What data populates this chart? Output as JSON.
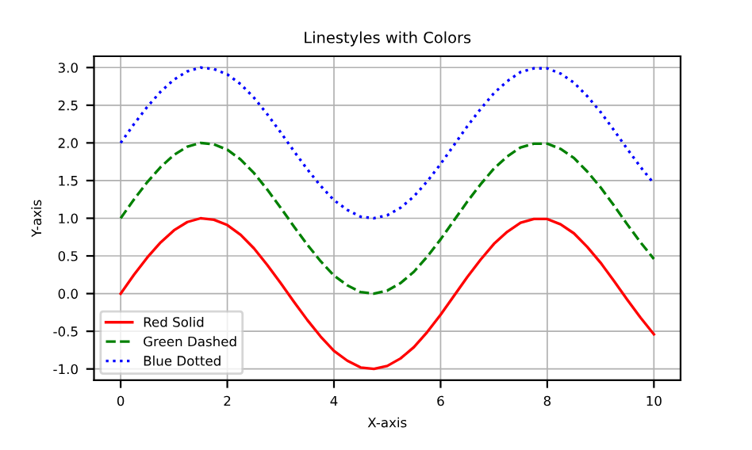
{
  "chart_data": {
    "type": "line",
    "title": "Linestyles with Colors",
    "xlabel": "X-axis",
    "ylabel": "Y-axis",
    "x": [
      0,
      0.25,
      0.5,
      0.75,
      1,
      1.25,
      1.5,
      1.75,
      2,
      2.25,
      2.5,
      2.75,
      3,
      3.25,
      3.5,
      3.75,
      4,
      4.25,
      4.5,
      4.75,
      5,
      5.25,
      5.5,
      5.75,
      6,
      6.25,
      6.5,
      6.75,
      7,
      7.25,
      7.5,
      7.75,
      8,
      8.25,
      8.5,
      8.75,
      9,
      9.25,
      9.5,
      9.75,
      10
    ],
    "series": [
      {
        "name": "Red Solid",
        "color": "#ff0000",
        "line_style": "solid",
        "values": [
          0,
          0.25,
          0.48,
          0.68,
          0.84,
          0.95,
          1.0,
          0.98,
          0.91,
          0.78,
          0.6,
          0.38,
          0.14,
          -0.11,
          -0.35,
          -0.57,
          -0.76,
          -0.89,
          -0.98,
          -1.0,
          -0.96,
          -0.86,
          -0.71,
          -0.51,
          -0.28,
          -0.03,
          0.22,
          0.45,
          0.66,
          0.82,
          0.94,
          0.99,
          0.99,
          0.92,
          0.8,
          0.62,
          0.41,
          0.17,
          -0.08,
          -0.32,
          -0.54
        ]
      },
      {
        "name": "Green Dashed",
        "color": "#008000",
        "line_style": "dashed",
        "values": [
          1,
          1.25,
          1.48,
          1.68,
          1.84,
          1.95,
          2.0,
          1.98,
          1.91,
          1.78,
          1.6,
          1.38,
          1.14,
          0.89,
          0.65,
          0.43,
          0.24,
          0.11,
          0.02,
          0.0,
          0.04,
          0.14,
          0.29,
          0.49,
          0.72,
          0.97,
          1.22,
          1.45,
          1.66,
          1.82,
          1.94,
          1.99,
          1.99,
          1.92,
          1.8,
          1.62,
          1.41,
          1.17,
          0.92,
          0.68,
          0.46
        ]
      },
      {
        "name": "Blue Dotted",
        "color": "#0000ff",
        "line_style": "dotted",
        "values": [
          2,
          2.25,
          2.48,
          2.68,
          2.84,
          2.95,
          3.0,
          2.98,
          2.91,
          2.78,
          2.6,
          2.38,
          2.14,
          1.89,
          1.65,
          1.43,
          1.24,
          1.11,
          1.02,
          1.0,
          1.04,
          1.14,
          1.29,
          1.49,
          1.72,
          1.97,
          2.22,
          2.45,
          2.66,
          2.82,
          2.94,
          2.99,
          2.99,
          2.92,
          2.8,
          2.62,
          2.41,
          2.17,
          1.92,
          1.68,
          1.46
        ]
      }
    ],
    "xlim": [
      -0.5,
      10.5
    ],
    "ylim": [
      -1.15,
      3.15
    ],
    "xticks": [
      0,
      2,
      4,
      6,
      8,
      10
    ],
    "yticks": [
      {
        "value": -1,
        "label": "-1.0"
      },
      {
        "value": -0.5,
        "label": "-0.5"
      },
      {
        "value": 0,
        "label": "0.0"
      },
      {
        "value": 0.5,
        "label": "0.5"
      },
      {
        "value": 1,
        "label": "1.0"
      },
      {
        "value": 1.5,
        "label": "1.5"
      },
      {
        "value": 2,
        "label": "2.0"
      },
      {
        "value": 2.5,
        "label": "2.5"
      },
      {
        "value": 3,
        "label": "3.0"
      }
    ],
    "grid": true,
    "legend": "lower left"
  }
}
